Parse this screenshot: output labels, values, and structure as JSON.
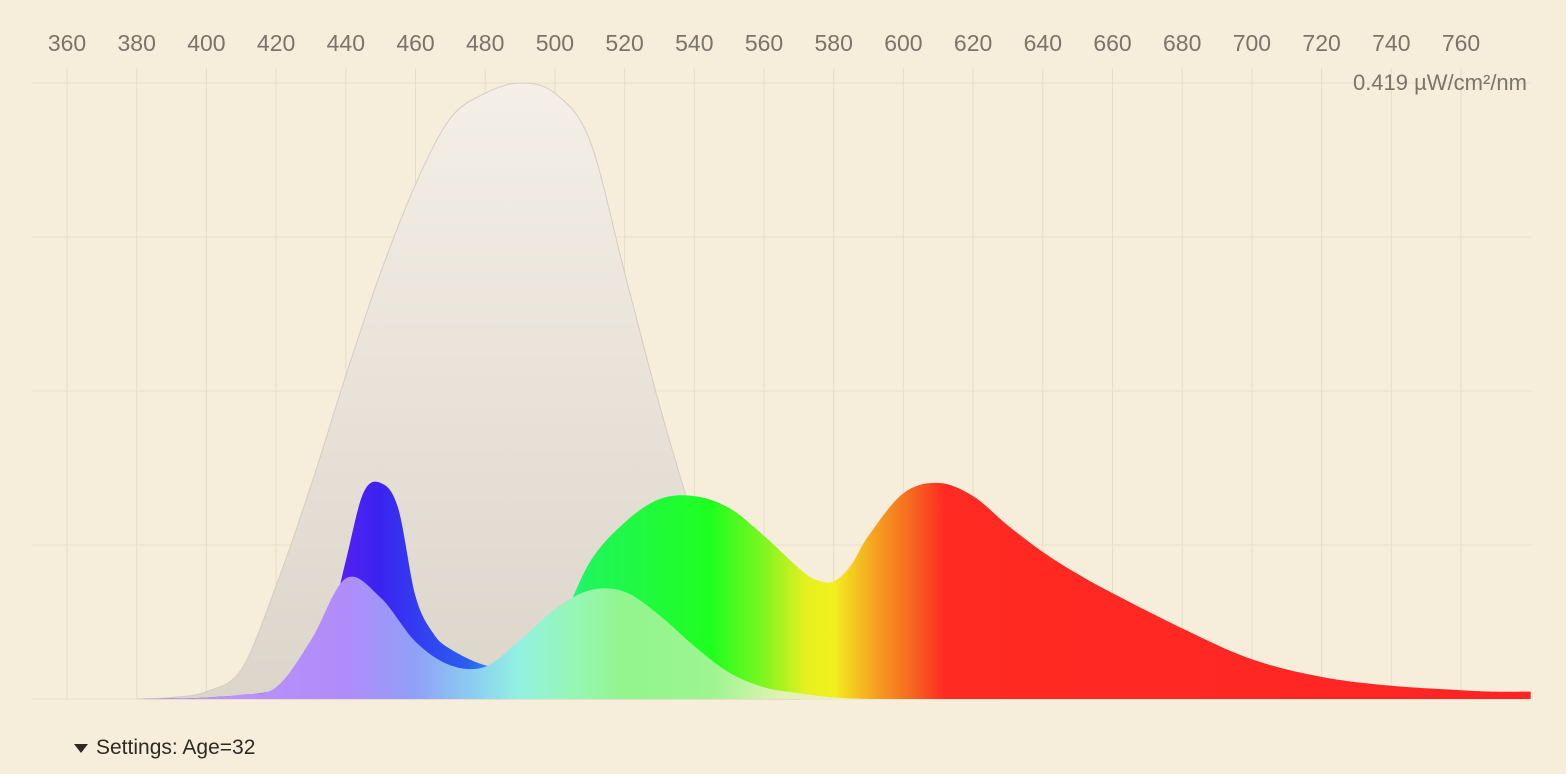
{
  "chart_data": {
    "type": "area",
    "title": "",
    "xlabel": "",
    "ylabel": "",
    "x_ticks": [
      360,
      380,
      400,
      420,
      440,
      460,
      480,
      500,
      520,
      540,
      560,
      580,
      600,
      620,
      640,
      660,
      680,
      700,
      720,
      740,
      760
    ],
    "xlim": [
      350,
      780
    ],
    "ylim": [
      0,
      0.419
    ],
    "y_max_label": "0.419 µW/cm²/nm",
    "grid": true,
    "series": [
      {
        "fill": "#e4ddd3",
        "x": [
          380,
          390,
          400,
          410,
          420,
          430,
          440,
          450,
          460,
          470,
          480,
          490,
          500,
          510,
          520,
          530,
          540,
          550,
          560,
          570
        ],
        "y": [
          0.0,
          0.001,
          0.005,
          0.02,
          0.077,
          0.145,
          0.22,
          0.29,
          0.35,
          0.395,
          0.412,
          0.419,
          0.412,
          0.38,
          0.29,
          0.2,
          0.12,
          0.05,
          0.015,
          0.0
        ]
      },
      {
        "gradient": "spectrum",
        "x": [
          380,
          400,
          420,
          430,
          435,
          440,
          445,
          450,
          455,
          460,
          465,
          470,
          480,
          490,
          500,
          510,
          520,
          530,
          540,
          550,
          560,
          570,
          575,
          580,
          585,
          590,
          600,
          610,
          620,
          630,
          640,
          650,
          660,
          680,
          700,
          720,
          740,
          760,
          770,
          780
        ],
        "y": [
          0.0,
          0.001,
          0.006,
          0.02,
          0.046,
          0.094,
          0.14,
          0.147,
          0.13,
          0.07,
          0.045,
          0.034,
          0.023,
          0.022,
          0.044,
          0.093,
          0.12,
          0.136,
          0.138,
          0.13,
          0.111,
          0.089,
          0.081,
          0.08,
          0.091,
          0.111,
          0.14,
          0.147,
          0.138,
          0.118,
          0.1,
          0.085,
          0.072,
          0.048,
          0.027,
          0.015,
          0.009,
          0.006,
          0.005,
          0.005
        ]
      },
      {
        "gradient": "pastel",
        "x": [
          390,
          400,
          410,
          420,
          430,
          440,
          450,
          460,
          470,
          480,
          490,
          500,
          510,
          520,
          530,
          540,
          550,
          560,
          570,
          580,
          590
        ],
        "y": [
          0.0,
          0.001,
          0.003,
          0.008,
          0.04,
          0.082,
          0.069,
          0.039,
          0.023,
          0.022,
          0.04,
          0.061,
          0.074,
          0.073,
          0.057,
          0.036,
          0.018,
          0.008,
          0.004,
          0.001,
          0.0
        ]
      }
    ]
  },
  "settings": {
    "label": "Settings: Age=32"
  }
}
